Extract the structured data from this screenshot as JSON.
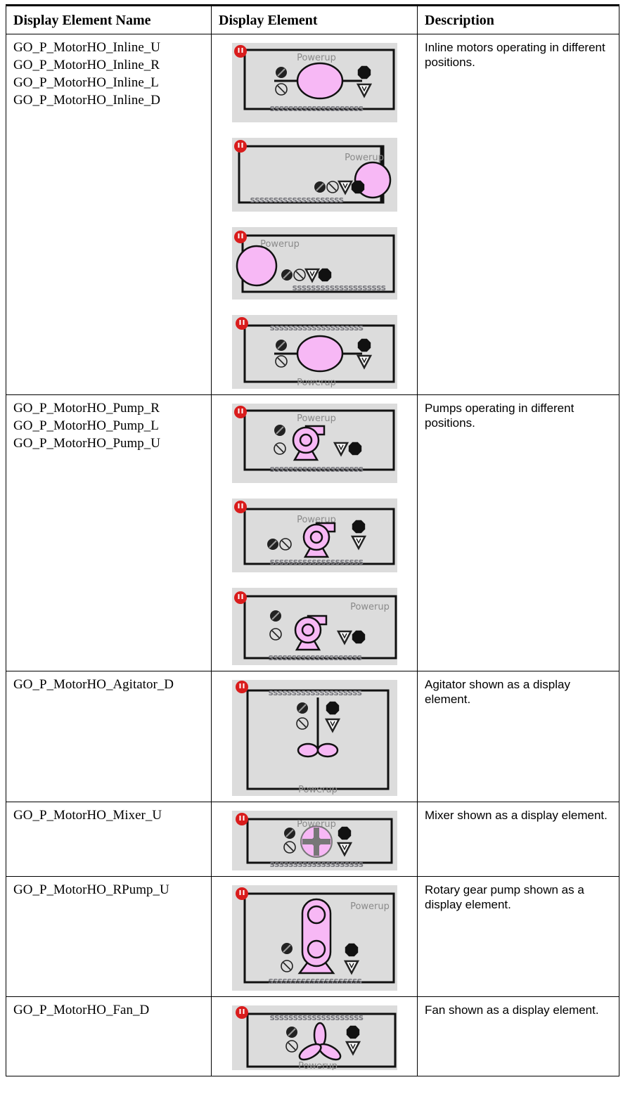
{
  "header": [
    "Display Element Name",
    "Display Element",
    "Description"
  ],
  "rows": [
    {
      "names": [
        "GO_P_MotorHO_Inline_U",
        "GO_P_MotorHO_Inline_R",
        "GO_P_MotorHO_Inline_L",
        "GO_P_MotorHO_Inline_D"
      ],
      "images": [
        {
          "label": "Powerup",
          "status": "ssssssssssssssssssss"
        },
        {
          "label": "Powerup",
          "status": "ssssssssssssssssssss"
        },
        {
          "label": "Powerup",
          "status": "ssssssssssssssssssss"
        },
        {
          "label": "Powerup",
          "status": "ssssssssssssssssssss"
        }
      ],
      "description": "Inline motors operating in different positions."
    },
    {
      "names": [
        "GO_P_MotorHO_Pump_R",
        "GO_P_MotorHO_Pump_L",
        "GO_P_MotorHO_Pump_U"
      ],
      "images": [
        {
          "label": "Powerup",
          "status": "ssssssssssssssssssss"
        },
        {
          "label": "Powerup",
          "status": "ssssssssssssssssssss"
        },
        {
          "label": "Powerup",
          "status": "ssssssssssssssssssss"
        }
      ],
      "description": "Pumps operating in different positions."
    },
    {
      "names": [
        "GO_P_MotorHO_Agitator_D"
      ],
      "images": [
        {
          "label": "Powerup",
          "status": "ssssssssssssssssssss"
        }
      ],
      "description": "Agitator shown as a display element."
    },
    {
      "names": [
        "GO_P_MotorHO_Mixer_U"
      ],
      "images": [
        {
          "label": "Powerup",
          "status": "ssssssssssssssssssss"
        }
      ],
      "description": "Mixer shown as a display element."
    },
    {
      "names": [
        "GO_P_MotorHO_RPump_U"
      ],
      "images": [
        {
          "label": "Powerup",
          "status": "ssssssssssssssssssss"
        }
      ],
      "description": "Rotary gear pump shown as a display element."
    },
    {
      "names": [
        "GO_P_MotorHO_Fan_D"
      ],
      "images": [
        {
          "label": "Powerup",
          "status": "ssssssssssssssssssss"
        }
      ],
      "description": "Fan shown as a display element."
    }
  ]
}
